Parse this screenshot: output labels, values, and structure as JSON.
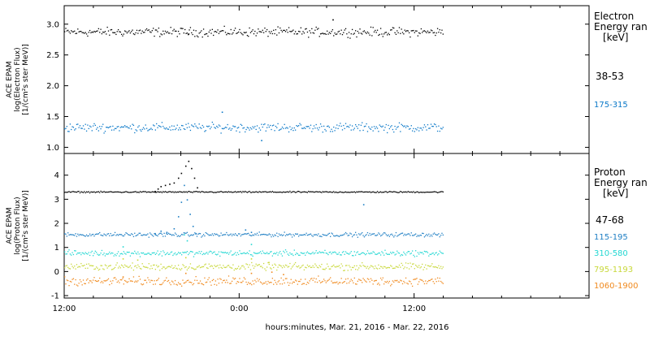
{
  "figure": {
    "xlabel": "hours:minutes, Mar. 21, 2016 - Mar. 22, 2016",
    "x_ticks": [
      {
        "label": "12:00",
        "hour": 0
      },
      {
        "label": "0:00",
        "hour": 12
      },
      {
        "label": "12:00",
        "hour": 24
      }
    ],
    "x_range_hours": [
      0,
      36
    ],
    "data_end_hour": 26
  },
  "chart_data": [
    {
      "type": "scatter",
      "panel": "electron",
      "ylabel": [
        "ACE EPAM",
        "log(Electron Flux)",
        "[1/(cm²s ster MeV)]"
      ],
      "ylim": [
        0.9,
        3.3
      ],
      "y_ticks": [
        1.0,
        1.5,
        2.0,
        2.5,
        3.0
      ],
      "y_tick_labels": [
        "1.0",
        "1.5",
        "2.0",
        "2.5",
        "3.0"
      ],
      "legend_title": [
        "Electron",
        "Energy ran",
        "[keV]"
      ],
      "series": [
        {
          "name": "38-53",
          "color": "#000000",
          "level": 2.88,
          "noise": 0.05,
          "points": [
            [
              8.5,
              2.85
            ],
            [
              18.4,
              3.08
            ]
          ]
        },
        {
          "name": "175-315",
          "color": "#0a78c8",
          "level": 1.33,
          "noise": 0.05,
          "points": [
            [
              10.8,
              1.58
            ],
            [
              13.5,
              1.12
            ]
          ]
        }
      ]
    },
    {
      "type": "scatter",
      "panel": "proton",
      "ylabel": [
        "ACE EPAM",
        "log(Proton Flux)",
        "[1/(cm²s ster MeV)]"
      ],
      "ylim": [
        -1.1,
        4.9
      ],
      "y_ticks": [
        -1,
        0,
        1,
        2,
        3,
        4
      ],
      "y_tick_labels": [
        "-1",
        "0",
        "1",
        "2",
        "3",
        "4"
      ],
      "legend_title": [
        "Proton",
        "Energy ran",
        "[keV]"
      ],
      "series": [
        {
          "name": "47-68",
          "color": "#000000",
          "level": 3.32,
          "noise": 0.02,
          "points": [
            [
              6.2,
              3.35
            ],
            [
              6.4,
              3.45
            ],
            [
              6.6,
              3.55
            ],
            [
              6.9,
              3.6
            ],
            [
              7.2,
              3.65
            ],
            [
              7.5,
              3.7
            ],
            [
              7.8,
              3.9
            ],
            [
              8.0,
              4.1
            ],
            [
              8.3,
              4.4
            ],
            [
              8.5,
              4.6
            ],
            [
              8.7,
              4.3
            ],
            [
              8.9,
              3.9
            ],
            [
              9.1,
              3.5
            ]
          ]
        },
        {
          "name": "115-195",
          "color": "#1f7fc4",
          "level": 1.55,
          "noise": 0.06,
          "points": [
            [
              6.2,
              1.6
            ],
            [
              6.6,
              1.7
            ],
            [
              7.0,
              1.65
            ],
            [
              7.5,
              1.8
            ],
            [
              7.8,
              2.3
            ],
            [
              8.0,
              2.9
            ],
            [
              8.2,
              3.6
            ],
            [
              8.4,
              3.0
            ],
            [
              8.6,
              2.4
            ],
            [
              8.8,
              1.9
            ],
            [
              9.0,
              1.6
            ],
            [
              12.4,
              1.75
            ],
            [
              12.8,
              1.65
            ],
            [
              20.5,
              2.8
            ]
          ]
        },
        {
          "name": "310-580",
          "color": "#22d7d2",
          "level": 0.78,
          "noise": 0.08,
          "points": [
            [
              4.0,
              1.05
            ],
            [
              8.2,
              1.55
            ],
            [
              8.4,
              1.3
            ],
            [
              12.8,
              1.15
            ]
          ]
        },
        {
          "name": "795-1193",
          "color": "#c8d83a",
          "level": 0.22,
          "noise": 0.1,
          "points": [
            [
              4.0,
              0.55
            ],
            [
              5.0,
              0.5
            ],
            [
              8.3,
              0.6
            ],
            [
              12.8,
              0.55
            ],
            [
              14.0,
              0.4
            ]
          ]
        },
        {
          "name": "1060-1900",
          "color": "#f08a1f",
          "level": -0.38,
          "noise": 0.12,
          "points": [
            [
              4.0,
              -0.2
            ],
            [
              8.3,
              -0.05
            ],
            [
              12.8,
              -0.05
            ],
            [
              14.2,
              0.0
            ],
            [
              15.0,
              -0.1
            ]
          ]
        }
      ]
    }
  ]
}
